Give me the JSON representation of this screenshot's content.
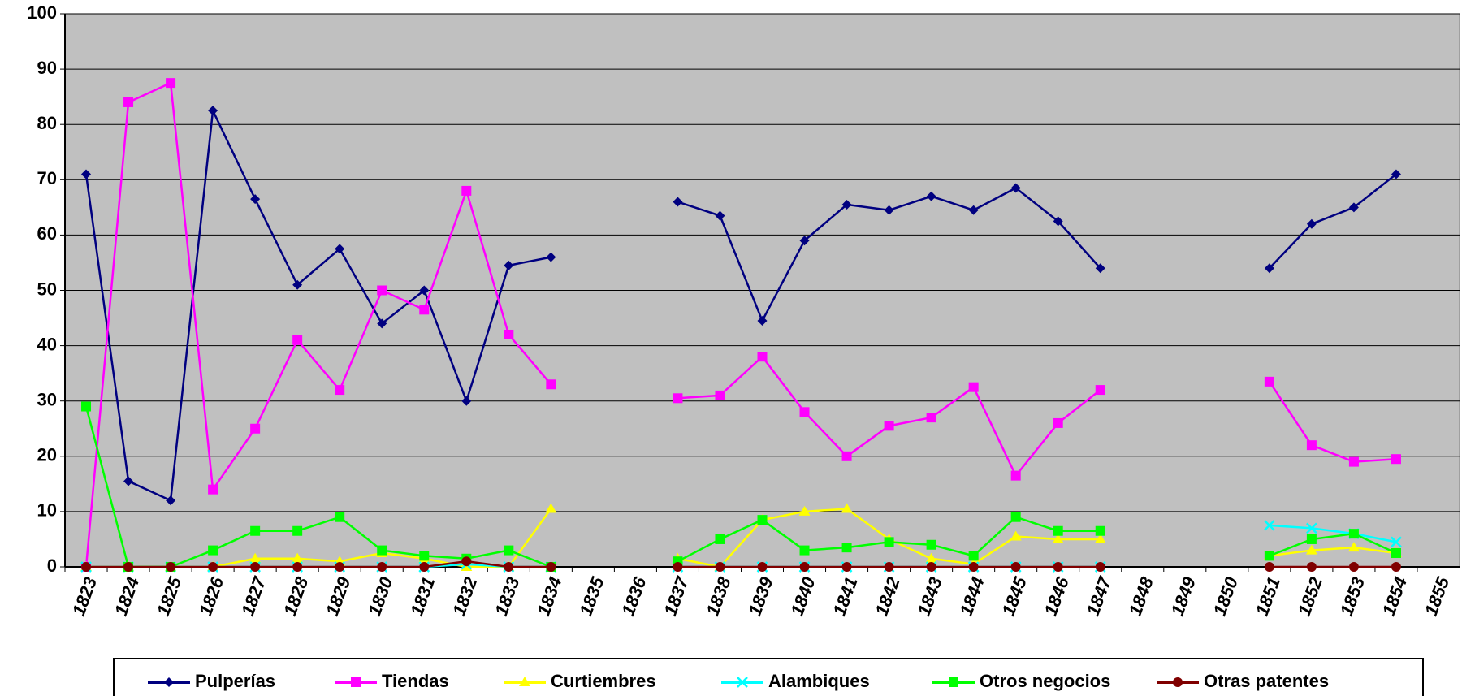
{
  "chart_data": {
    "type": "line",
    "categories": [
      "1823",
      "1824",
      "1825",
      "1826",
      "1827",
      "1828",
      "1829",
      "1830",
      "1831",
      "1832",
      "1833",
      "1834",
      "1835",
      "1836",
      "1837",
      "1838",
      "1839",
      "1840",
      "1841",
      "1842",
      "1843",
      "1844",
      "1845",
      "1846",
      "1847",
      "1848",
      "1849",
      "1850",
      "1851",
      "1852",
      "1853",
      "1854",
      "1855"
    ],
    "series": [
      {
        "name": "Pulperías",
        "color": "#000080",
        "marker": "diamond",
        "values": [
          71,
          15.5,
          12,
          82.5,
          66.5,
          51,
          57.5,
          44,
          50,
          30,
          54.5,
          56,
          null,
          null,
          66,
          63.5,
          44.5,
          59,
          65.5,
          64.5,
          67,
          64.5,
          68.5,
          62.5,
          54,
          null,
          null,
          null,
          54,
          62,
          65,
          71,
          null
        ]
      },
      {
        "name": "Tiendas",
        "color": "#ff00ff",
        "marker": "square",
        "values": [
          0,
          84,
          87.5,
          14,
          25,
          41,
          32,
          50,
          46.5,
          68,
          42,
          33,
          null,
          null,
          30.5,
          31,
          38,
          28,
          20,
          25.5,
          27,
          32.5,
          16.5,
          26,
          32,
          null,
          null,
          null,
          33.5,
          22,
          19,
          19.5,
          null
        ]
      },
      {
        "name": "Curtiembres",
        "color": "#ffff00",
        "marker": "triangle",
        "values": [
          0,
          0,
          0,
          0,
          1.5,
          1.5,
          1,
          2.5,
          1.5,
          0,
          0,
          10.5,
          null,
          null,
          1.5,
          0,
          8.5,
          10,
          10.5,
          5,
          1.5,
          0.5,
          5.5,
          5,
          5,
          null,
          null,
          null,
          2,
          3,
          3.5,
          2.5,
          null
        ]
      },
      {
        "name": "Alambiques",
        "color": "#00ffff",
        "marker": "x",
        "values": [
          0,
          0,
          0,
          0,
          0,
          0,
          0,
          0,
          0,
          0.5,
          0,
          0,
          null,
          null,
          0,
          0,
          0,
          0,
          0,
          0,
          0,
          0,
          0,
          0,
          0,
          null,
          null,
          null,
          7.5,
          7,
          6,
          4.5,
          null
        ]
      },
      {
        "name": "Otros negocios",
        "color": "#00ff00",
        "marker": "square",
        "values": [
          29,
          0,
          0,
          3,
          6.5,
          6.5,
          9,
          3,
          2,
          1.5,
          3,
          0,
          null,
          null,
          1,
          5,
          8.5,
          3,
          3.5,
          4.5,
          4,
          2,
          9,
          6.5,
          6.5,
          null,
          null,
          null,
          2,
          5,
          6,
          2.5,
          null
        ]
      },
      {
        "name": "Otras patentes",
        "color": "#800000",
        "marker": "circle",
        "values": [
          0,
          0,
          0,
          0,
          0,
          0,
          0,
          0,
          0,
          1,
          0,
          0,
          null,
          null,
          0,
          0,
          0,
          0,
          0,
          0,
          0,
          0,
          0,
          0,
          0,
          null,
          null,
          null,
          0,
          0,
          0,
          0,
          null
        ]
      }
    ],
    "ylim": [
      0,
      100
    ],
    "yticks": [
      0,
      10,
      20,
      30,
      40,
      50,
      60,
      70,
      80,
      90,
      100
    ],
    "grid": true,
    "plot_background": "#c0c0c0",
    "legend": "bottom"
  }
}
